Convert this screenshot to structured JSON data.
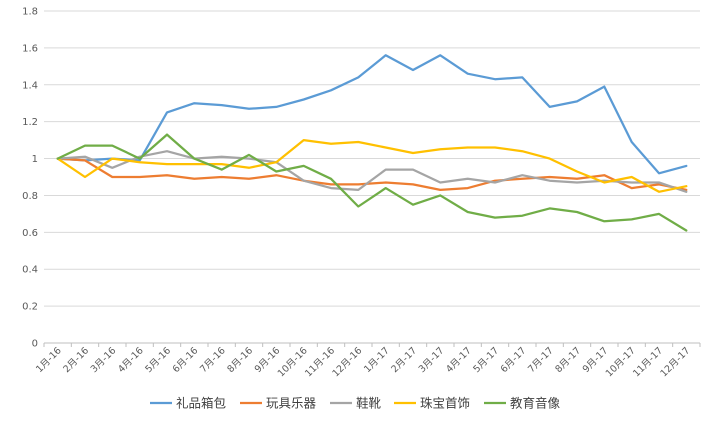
{
  "chart_data": {
    "type": "line",
    "title": "",
    "xlabel": "",
    "ylabel": "",
    "ylim": [
      0,
      1.8
    ],
    "yticks": [
      "0",
      "0.2",
      "0.4",
      "0.6",
      "0.8",
      "1",
      "1.2",
      "1.4",
      "1.6",
      "1.8"
    ],
    "grid": "horizontal",
    "legend_position": "bottom",
    "categories": [
      "1月-16",
      "2月-16",
      "3月-16",
      "4月-16",
      "5月-16",
      "6月-16",
      "7月-16",
      "8月-16",
      "9月-16",
      "10月-16",
      "11月-16",
      "12月-16",
      "1月-17",
      "2月-17",
      "3月-17",
      "4月-17",
      "5月-17",
      "6月-17",
      "7月-17",
      "8月-17",
      "9月-17",
      "10月-17",
      "11月-17",
      "12月-17"
    ],
    "series": [
      {
        "name": "礼品箱包",
        "color": "#5b9bd5",
        "values": [
          1.0,
          0.99,
          1.0,
          0.99,
          1.25,
          1.3,
          1.29,
          1.27,
          1.28,
          1.32,
          1.37,
          1.44,
          1.56,
          1.48,
          1.56,
          1.46,
          1.43,
          1.44,
          1.28,
          1.31,
          1.39,
          1.09,
          0.92,
          0.96
        ]
      },
      {
        "name": "玩具乐器",
        "color": "#ed7d31",
        "values": [
          1.0,
          0.99,
          0.9,
          0.9,
          0.91,
          0.89,
          0.9,
          0.89,
          0.91,
          0.88,
          0.86,
          0.86,
          0.87,
          0.86,
          0.83,
          0.84,
          0.88,
          0.89,
          0.9,
          0.89,
          0.91,
          0.84,
          0.86,
          0.83
        ]
      },
      {
        "name": "鞋靴",
        "color": "#a5a5a5",
        "values": [
          1.0,
          1.01,
          0.95,
          1.01,
          1.04,
          1.0,
          1.01,
          1.0,
          0.98,
          0.88,
          0.84,
          0.83,
          0.94,
          0.94,
          0.87,
          0.89,
          0.87,
          0.91,
          0.88,
          0.87,
          0.88,
          0.87,
          0.87,
          0.82
        ]
      },
      {
        "name": "珠宝首饰",
        "color": "#ffc000",
        "values": [
          1.0,
          0.9,
          1.0,
          0.98,
          0.97,
          0.97,
          0.97,
          0.95,
          0.98,
          1.1,
          1.08,
          1.09,
          1.06,
          1.03,
          1.05,
          1.06,
          1.06,
          1.04,
          1.0,
          0.93,
          0.87,
          0.9,
          0.82,
          0.85
        ]
      },
      {
        "name": "教育音像",
        "color": "#70ad47",
        "values": [
          1.0,
          1.07,
          1.07,
          1.0,
          1.13,
          1.0,
          0.94,
          1.02,
          0.93,
          0.96,
          0.89,
          0.74,
          0.84,
          0.75,
          0.8,
          0.71,
          0.68,
          0.69,
          0.73,
          0.71,
          0.66,
          0.67,
          0.7,
          0.61
        ]
      }
    ]
  }
}
